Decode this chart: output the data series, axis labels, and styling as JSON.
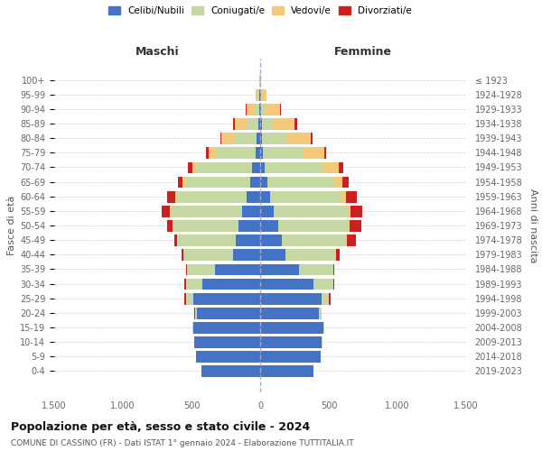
{
  "age_groups": [
    "0-4",
    "5-9",
    "10-14",
    "15-19",
    "20-24",
    "25-29",
    "30-34",
    "35-39",
    "40-44",
    "45-49",
    "50-54",
    "55-59",
    "60-64",
    "65-69",
    "70-74",
    "75-79",
    "80-84",
    "85-89",
    "90-94",
    "95-99",
    "100+"
  ],
  "birth_years": [
    "2019-2023",
    "2014-2018",
    "2009-2013",
    "2004-2008",
    "1999-2003",
    "1994-1998",
    "1989-1993",
    "1984-1988",
    "1979-1983",
    "1974-1978",
    "1969-1973",
    "1964-1968",
    "1959-1963",
    "1954-1958",
    "1949-1953",
    "1944-1948",
    "1939-1943",
    "1934-1938",
    "1929-1933",
    "1924-1928",
    "≤ 1923"
  ],
  "colors": {
    "celibi": "#4472c4",
    "coniugati": "#c5d8a4",
    "vedovi": "#f5c97a",
    "divorziati": "#cc2020"
  },
  "maschi": {
    "celibi": [
      430,
      470,
      480,
      490,
      460,
      490,
      420,
      330,
      200,
      175,
      155,
      130,
      100,
      75,
      60,
      35,
      25,
      15,
      8,
      5,
      2
    ],
    "coniugati": [
      0,
      0,
      2,
      5,
      15,
      50,
      120,
      200,
      360,
      430,
      480,
      520,
      510,
      470,
      400,
      290,
      160,
      80,
      30,
      5,
      0
    ],
    "vedovi": [
      0,
      0,
      0,
      0,
      0,
      0,
      0,
      0,
      0,
      0,
      5,
      5,
      10,
      20,
      35,
      50,
      95,
      90,
      60,
      20,
      2
    ],
    "divorziati": [
      0,
      0,
      0,
      0,
      5,
      10,
      10,
      10,
      15,
      20,
      40,
      65,
      55,
      35,
      30,
      20,
      10,
      10,
      5,
      0,
      0
    ]
  },
  "femmine": {
    "celibi": [
      390,
      440,
      450,
      460,
      430,
      450,
      390,
      280,
      185,
      155,
      130,
      100,
      75,
      50,
      30,
      20,
      15,
      10,
      5,
      5,
      2
    ],
    "coniugati": [
      0,
      0,
      2,
      5,
      15,
      50,
      140,
      250,
      370,
      470,
      510,
      540,
      520,
      480,
      430,
      290,
      180,
      80,
      30,
      5,
      0
    ],
    "vedovi": [
      0,
      0,
      0,
      0,
      0,
      0,
      0,
      0,
      0,
      5,
      10,
      15,
      30,
      70,
      110,
      155,
      175,
      160,
      110,
      35,
      5
    ],
    "divorziati": [
      0,
      0,
      0,
      0,
      5,
      10,
      10,
      10,
      25,
      65,
      85,
      90,
      80,
      45,
      35,
      15,
      10,
      20,
      5,
      0,
      0
    ]
  },
  "title": "Popolazione per età, sesso e stato civile - 2024",
  "subtitle": "COMUNE DI CASSINO (FR) - Dati ISTAT 1° gennaio 2024 - Elaborazione TUTTITALIA.IT",
  "xlabel_left": "Maschi",
  "xlabel_right": "Femmine",
  "ylabel_left": "Fasce di età",
  "ylabel_right": "Anni di nascita",
  "xlim": 1500,
  "background_color": "#ffffff",
  "legend_labels": [
    "Celibi/Nubili",
    "Coniugati/e",
    "Vedovi/e",
    "Divorziati/e"
  ]
}
